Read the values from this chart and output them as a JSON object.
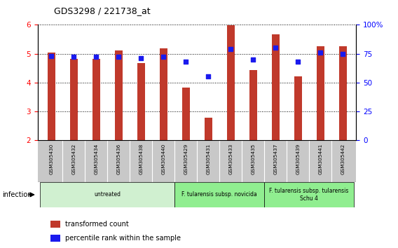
{
  "title": "GDS3298 / 221738_at",
  "samples": [
    "GSM305430",
    "GSM305432",
    "GSM305434",
    "GSM305436",
    "GSM305438",
    "GSM305440",
    "GSM305429",
    "GSM305431",
    "GSM305433",
    "GSM305435",
    "GSM305437",
    "GSM305439",
    "GSM305441",
    "GSM305442"
  ],
  "red_values": [
    5.03,
    4.83,
    4.82,
    5.12,
    4.68,
    5.18,
    3.82,
    2.78,
    5.98,
    4.44,
    5.68,
    4.22,
    5.25,
    5.25
  ],
  "blue_values": [
    73,
    72,
    72,
    72,
    71,
    72,
    68,
    55,
    79,
    70,
    80,
    68,
    76,
    75
  ],
  "ylim_left": [
    2,
    6
  ],
  "ylim_right": [
    0,
    100
  ],
  "yticks_left": [
    2,
    3,
    4,
    5,
    6
  ],
  "yticks_right": [
    0,
    25,
    50,
    75,
    100
  ],
  "bar_color": "#c0392b",
  "dot_color": "#1a1aee",
  "background_color": "#ffffff",
  "tick_area_color": "#c8c8c8",
  "groups": [
    {
      "label": "untreated",
      "start": 0,
      "end": 5,
      "color": "#d0f0d0"
    },
    {
      "label": "F. tularensis subsp. novicida",
      "start": 6,
      "end": 9,
      "color": "#90ee90"
    },
    {
      "label": "F. tularensis subsp. tularensis\nSchu 4",
      "start": 10,
      "end": 13,
      "color": "#90ee90"
    }
  ],
  "legend_items": [
    {
      "label": "transformed count",
      "color": "#c0392b"
    },
    {
      "label": "percentile rank within the sample",
      "color": "#1a1aee"
    }
  ],
  "infection_label": "infection",
  "bar_width": 0.35
}
